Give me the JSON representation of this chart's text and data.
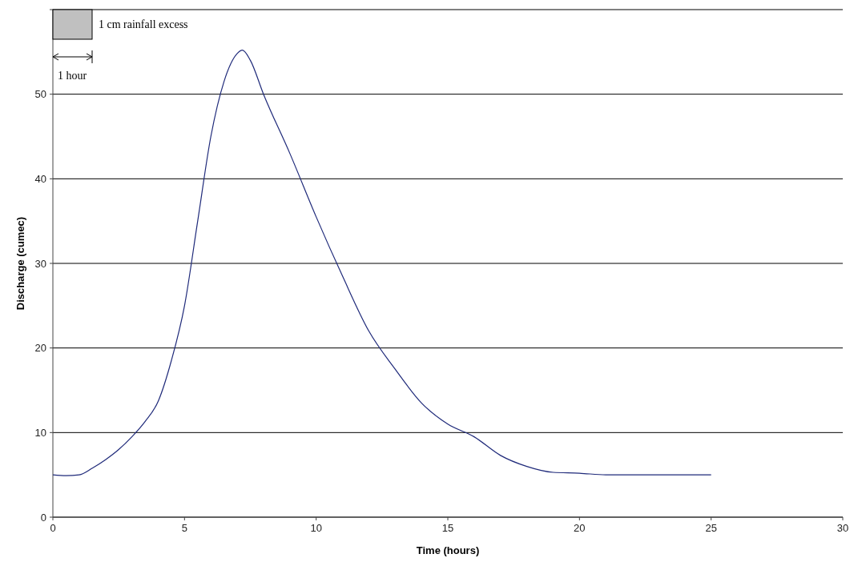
{
  "chart_data": {
    "type": "line",
    "xlabel": "Time (hours)",
    "ylabel": "Discharge (cumec)",
    "x": [
      0,
      0.5,
      1,
      1.5,
      2,
      2.5,
      3,
      3.5,
      4,
      4.5,
      5,
      5.5,
      6,
      6.5,
      7,
      7.2,
      7.5,
      8,
      9,
      10,
      11,
      12,
      13,
      14,
      15,
      16,
      17,
      18,
      19,
      20,
      21,
      23,
      25
    ],
    "series": [
      {
        "color": "#1f2a7a",
        "values": [
          5,
          4.9,
          5,
          5.8,
          6.8,
          8,
          9.5,
          11.3,
          13.7,
          18.5,
          25,
          35,
          45,
          51.5,
          54.8,
          55.2,
          54,
          50,
          43,
          35.5,
          28.5,
          22,
          17.5,
          13.5,
          11,
          9.5,
          7.3,
          6,
          5.3,
          5.2,
          5,
          5,
          5
        ]
      }
    ],
    "xlim": [
      0,
      30
    ],
    "xticks": [
      0,
      5,
      10,
      15,
      20,
      25,
      30
    ],
    "ylim": [
      0,
      60
    ],
    "yticks": [
      0,
      10,
      20,
      30,
      40,
      50,
      {
        "value": 60,
        "label": null
      }
    ],
    "grid": "y",
    "marker": "none",
    "line_style": "solid",
    "annotations": [
      "1 cm rainfall excess",
      "1 hour"
    ]
  }
}
